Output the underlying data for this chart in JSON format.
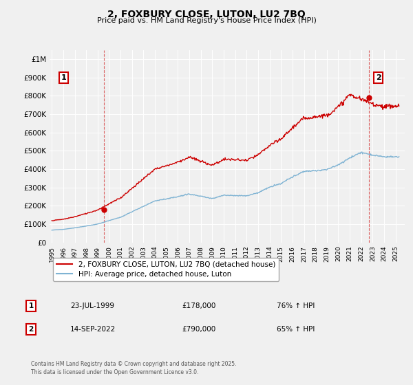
{
  "title": "2, FOXBURY CLOSE, LUTON, LU2 7BQ",
  "subtitle": "Price paid vs. HM Land Registry's House Price Index (HPI)",
  "legend_label_red": "2, FOXBURY CLOSE, LUTON, LU2 7BQ (detached house)",
  "legend_label_blue": "HPI: Average price, detached house, Luton",
  "annotation1_date": "23-JUL-1999",
  "annotation1_price": "£178,000",
  "annotation1_hpi": "76% ↑ HPI",
  "annotation2_date": "14-SEP-2022",
  "annotation2_price": "£790,000",
  "annotation2_hpi": "65% ↑ HPI",
  "footer": "Contains HM Land Registry data © Crown copyright and database right 2025.\nThis data is licensed under the Open Government Licence v3.0.",
  "red_color": "#cc0000",
  "blue_color": "#7fb3d3",
  "background_color": "#f0f0f0",
  "ylim_min": 0,
  "ylim_max": 1050000,
  "purchase1_year": 1999.55,
  "purchase1_price": 178000,
  "purchase2_year": 2022.7,
  "purchase2_price": 790000
}
